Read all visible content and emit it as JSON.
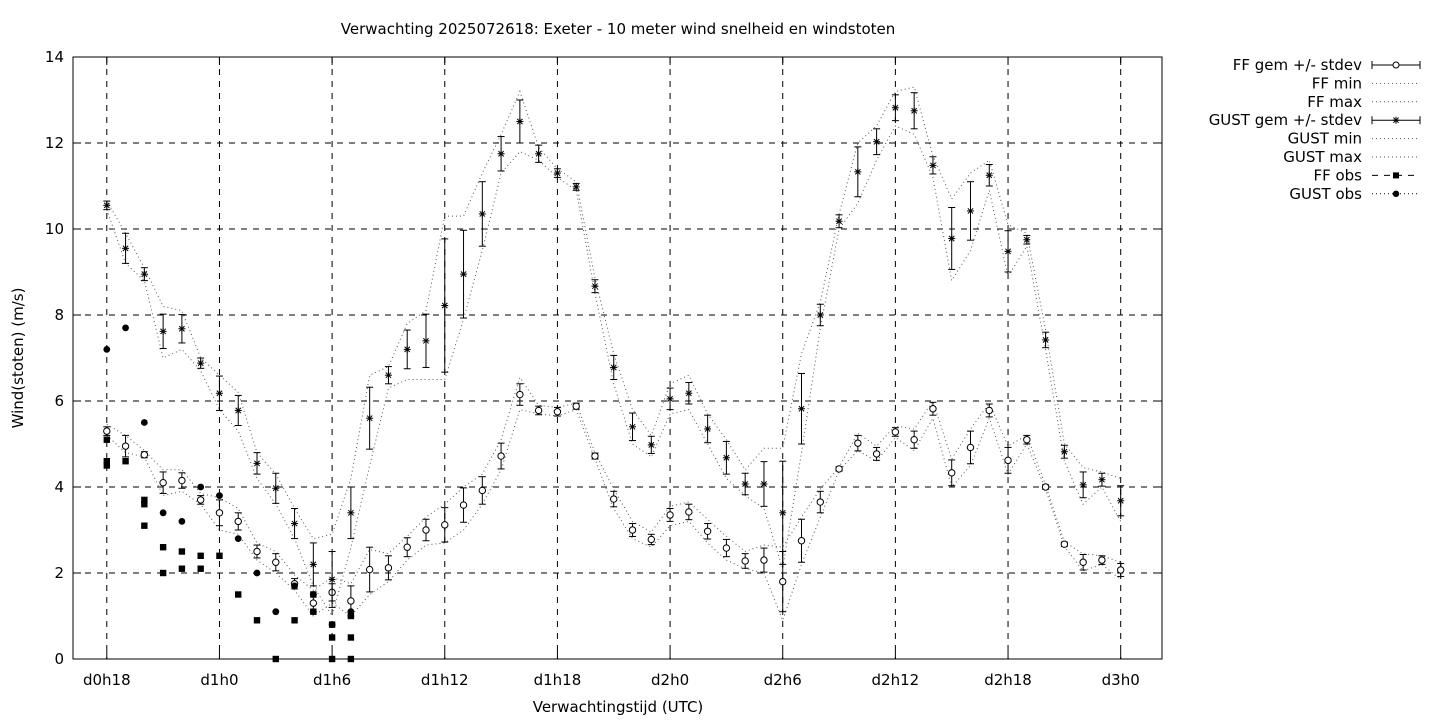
{
  "chart_data": {
    "type": "line",
    "title": "Verwachting 2025072618: Exeter - 10 meter wind snelheid en windstoten",
    "xlabel": "Verwachtingstijd (UTC)",
    "ylabel": "Wind(stoten) (m/s)",
    "x_unit": "hours since forecast start",
    "xlim": [
      -1.8,
      56.2
    ],
    "ylim": [
      0,
      14
    ],
    "y_ticks": [
      0,
      2,
      4,
      6,
      8,
      10,
      12,
      14
    ],
    "x_ticks": [
      {
        "x": 0,
        "label": "d0h18"
      },
      {
        "x": 6,
        "label": "d1h0"
      },
      {
        "x": 12,
        "label": "d1h6"
      },
      {
        "x": 18,
        "label": "d1h12"
      },
      {
        "x": 24,
        "label": "d1h18"
      },
      {
        "x": 30,
        "label": "d2h0"
      },
      {
        "x": 36,
        "label": "d2h6"
      },
      {
        "x": 42,
        "label": "d2h12"
      },
      {
        "x": 48,
        "label": "d2h18"
      },
      {
        "x": 54,
        "label": "d3h0"
      }
    ],
    "grid": true,
    "legend_position": "outside-right",
    "legend": [
      {
        "key": "ff_mean",
        "label": "FF gem +/- stdev",
        "style": "errorbar-open-circle"
      },
      {
        "key": "ff_min",
        "label": "FF min",
        "style": "dotted"
      },
      {
        "key": "ff_max",
        "label": "FF max",
        "style": "dotted"
      },
      {
        "key": "gust_mean",
        "label": "GUST gem +/- stdev",
        "style": "errorbar-star"
      },
      {
        "key": "gust_min",
        "label": "GUST min",
        "style": "dotted"
      },
      {
        "key": "gust_max",
        "label": "GUST max",
        "style": "dotted"
      },
      {
        "key": "ff_obs",
        "label": "FF obs",
        "style": "filled-square"
      },
      {
        "key": "gust_obs",
        "label": "GUST obs",
        "style": "filled-circle"
      }
    ],
    "x": [
      0,
      1,
      2,
      3,
      4,
      5,
      6,
      7,
      8,
      9,
      10,
      11,
      12,
      13,
      14,
      15,
      16,
      17,
      18,
      19,
      20,
      21,
      22,
      23,
      24,
      25,
      26,
      27,
      28,
      29,
      30,
      31,
      32,
      33,
      34,
      35,
      36,
      37,
      38,
      39,
      40,
      41,
      42,
      43,
      44,
      45,
      46,
      47,
      48,
      49,
      50,
      51,
      52,
      53,
      54
    ],
    "ff_mean": [
      5.3,
      4.95,
      4.75,
      4.1,
      4.15,
      3.7,
      3.4,
      3.2,
      2.5,
      2.25,
      1.75,
      1.3,
      1.55,
      1.35,
      2.08,
      2.12,
      2.6,
      3.0,
      3.12,
      3.58,
      3.92,
      4.72,
      6.15,
      5.78,
      5.75,
      5.88,
      4.72,
      3.72,
      3.0,
      2.78,
      3.35,
      3.42,
      2.97,
      2.58,
      2.28,
      2.3,
      1.8,
      2.75,
      3.65,
      4.42,
      5.02,
      4.77,
      5.28,
      5.1,
      5.82,
      4.33,
      4.92,
      5.78,
      4.62,
      5.1,
      4.0,
      2.67,
      2.25,
      2.3,
      2.07
    ],
    "ff_std": [
      0.1,
      0.25,
      0.07,
      0.25,
      0.18,
      0.1,
      0.3,
      0.2,
      0.15,
      0.2,
      0.12,
      0.2,
      0.2,
      0.35,
      0.52,
      0.28,
      0.22,
      0.25,
      0.4,
      0.4,
      0.32,
      0.3,
      0.25,
      0.1,
      0.1,
      0.07,
      0.07,
      0.18,
      0.15,
      0.12,
      0.15,
      0.18,
      0.18,
      0.2,
      0.17,
      0.28,
      0.7,
      0.5,
      0.25,
      0.05,
      0.18,
      0.15,
      0.1,
      0.2,
      0.15,
      0.3,
      0.38,
      0.15,
      0.3,
      0.1,
      0.05,
      0.05,
      0.18,
      0.1,
      0.15
    ],
    "ff_min": [
      5.2,
      4.8,
      4.7,
      3.8,
      3.9,
      3.6,
      3.0,
      2.9,
      2.3,
      2.0,
      1.6,
      1.0,
      1.3,
      1.0,
      1.5,
      1.8,
      2.3,
      2.65,
      2.7,
      3.0,
      3.6,
      4.4,
      5.8,
      5.7,
      5.65,
      5.8,
      4.65,
      3.5,
      2.8,
      2.6,
      3.1,
      3.2,
      2.7,
      2.3,
      2.1,
      2.0,
      0.9,
      2.2,
      3.3,
      4.38,
      4.85,
      4.6,
      5.15,
      4.85,
      5.6,
      4.0,
      4.5,
      5.6,
      4.3,
      5.0,
      3.95,
      2.62,
      2.05,
      2.2,
      1.85
    ],
    "ff_max": [
      5.45,
      5.2,
      4.85,
      4.4,
      4.4,
      3.85,
      3.75,
      3.5,
      2.7,
      2.5,
      1.95,
      1.6,
      1.9,
      1.75,
      2.55,
      2.45,
      2.85,
      3.3,
      3.6,
      4.0,
      4.3,
      5.1,
      6.55,
      5.9,
      5.85,
      5.95,
      4.8,
      3.95,
      3.2,
      2.95,
      3.55,
      3.65,
      3.25,
      2.85,
      2.5,
      2.65,
      2.6,
      3.3,
      3.95,
      4.46,
      5.25,
      4.95,
      5.42,
      5.35,
      6.0,
      4.65,
      5.35,
      5.95,
      4.95,
      5.2,
      4.05,
      2.72,
      2.45,
      2.4,
      2.25
    ],
    "gust_mean": [
      10.55,
      9.55,
      8.95,
      7.62,
      7.68,
      6.88,
      6.18,
      5.78,
      4.55,
      3.97,
      3.15,
      2.2,
      1.85,
      3.4,
      5.6,
      6.6,
      7.2,
      7.4,
      8.22,
      8.95,
      10.35,
      11.75,
      12.5,
      11.75,
      11.3,
      10.98,
      8.67,
      6.78,
      5.4,
      4.98,
      6.05,
      6.18,
      5.35,
      4.68,
      4.07,
      4.07,
      3.4,
      5.82,
      8.0,
      10.18,
      11.33,
      12.03,
      12.82,
      12.75,
      11.48,
      9.78,
      10.42,
      11.25,
      9.48,
      9.75,
      7.42,
      4.82,
      4.05,
      4.17,
      3.68
    ],
    "gust_std": [
      0.1,
      0.35,
      0.15,
      0.4,
      0.33,
      0.12,
      0.4,
      0.35,
      0.25,
      0.35,
      0.35,
      0.5,
      0.65,
      0.6,
      0.72,
      0.2,
      0.45,
      0.62,
      1.55,
      1.02,
      0.75,
      0.4,
      0.5,
      0.2,
      0.1,
      0.08,
      0.15,
      0.28,
      0.32,
      0.2,
      0.25,
      0.25,
      0.32,
      0.38,
      0.25,
      0.52,
      1.2,
      0.82,
      0.25,
      0.15,
      0.58,
      0.3,
      0.3,
      0.42,
      0.2,
      0.72,
      0.68,
      0.25,
      0.48,
      0.1,
      0.18,
      0.15,
      0.3,
      0.15,
      0.35
    ],
    "gust_min": [
      10.45,
      9.2,
      8.8,
      7.0,
      7.2,
      6.7,
      5.8,
      5.3,
      4.2,
      3.6,
      2.8,
      1.7,
      1.0,
      2.6,
      4.5,
      6.3,
      6.5,
      6.5,
      6.5,
      7.9,
      9.5,
      11.3,
      11.8,
      11.6,
      11.2,
      10.9,
      8.5,
      6.4,
      5.0,
      4.7,
      5.7,
      5.8,
      5.0,
      4.2,
      3.8,
      3.5,
      2.1,
      4.8,
      7.7,
      10.0,
      10.6,
      11.6,
      12.4,
      12.2,
      11.2,
      8.8,
      9.5,
      10.9,
      8.9,
      9.6,
      7.2,
      4.6,
      3.6,
      4.0,
      3.2
    ],
    "gust_max": [
      10.65,
      9.9,
      9.1,
      8.2,
      8.1,
      7.0,
      6.6,
      6.2,
      4.8,
      4.3,
      3.5,
      2.8,
      2.9,
      4.2,
      6.6,
      6.8,
      7.8,
      8.1,
      10.3,
      10.3,
      11.3,
      12.2,
      13.2,
      11.9,
      11.4,
      11.1,
      8.85,
      7.1,
      5.8,
      5.2,
      6.4,
      6.6,
      5.7,
      5.1,
      4.4,
      4.9,
      4.9,
      7.1,
      8.3,
      10.35,
      12.0,
      12.4,
      13.2,
      13.3,
      11.7,
      10.7,
      11.3,
      11.6,
      10.1,
      9.9,
      7.65,
      5.0,
      4.45,
      4.35,
      4.2
    ],
    "ff_obs": [
      [
        0,
        5.1
      ],
      [
        0,
        4.6
      ],
      [
        0,
        4.5
      ],
      [
        1,
        4.6
      ],
      [
        2,
        3.7
      ],
      [
        2,
        3.6
      ],
      [
        2,
        3.1
      ],
      [
        3,
        2.6
      ],
      [
        3,
        2.0
      ],
      [
        4,
        2.5
      ],
      [
        4,
        2.1
      ],
      [
        5,
        2.4
      ],
      [
        5,
        2.1
      ],
      [
        6,
        2.4
      ],
      [
        7,
        1.5
      ],
      [
        8,
        0.9
      ],
      [
        9,
        0.0
      ],
      [
        10,
        0.9
      ],
      [
        11,
        1.5
      ],
      [
        11,
        1.1
      ],
      [
        12,
        0.5
      ],
      [
        12,
        0.8
      ],
      [
        12,
        0.0
      ],
      [
        13,
        1.0
      ],
      [
        13,
        0.5
      ],
      [
        13,
        0.0
      ]
    ],
    "gust_obs": [
      [
        0,
        7.2
      ],
      [
        1,
        7.7
      ],
      [
        2,
        5.5
      ],
      [
        3,
        3.4
      ],
      [
        4,
        3.2
      ],
      [
        5,
        4.0
      ],
      [
        6,
        3.8
      ],
      [
        7,
        2.8
      ],
      [
        8,
        2.0
      ],
      [
        9,
        1.1
      ],
      [
        10,
        1.7
      ],
      [
        11,
        1.5
      ],
      [
        12,
        0.8
      ],
      [
        13,
        1.1
      ]
    ]
  }
}
